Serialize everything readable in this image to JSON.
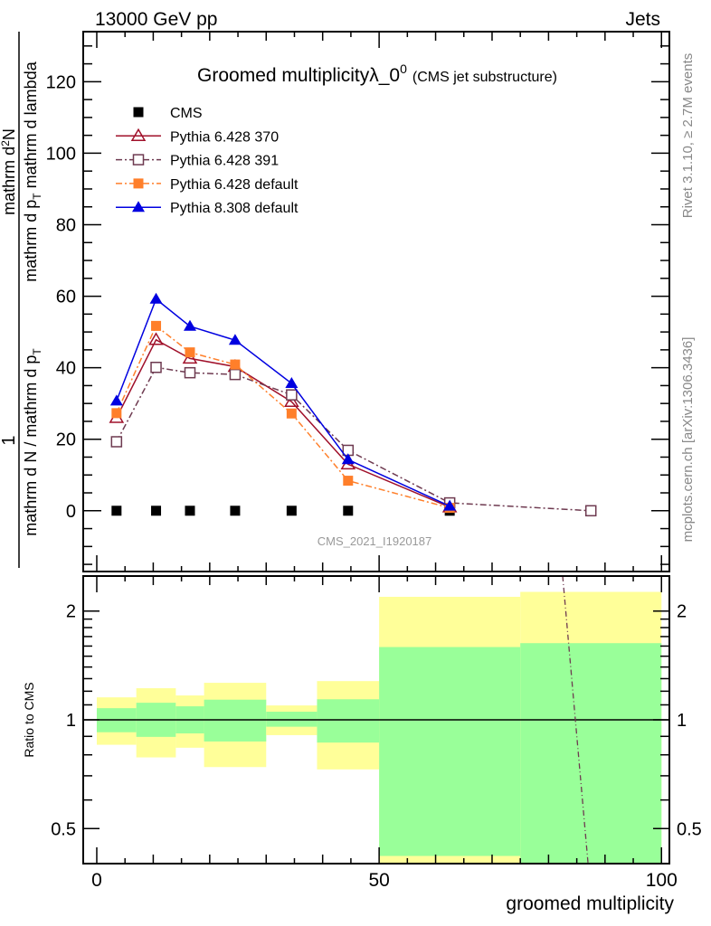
{
  "header": {
    "left": "13000 GeV pp",
    "right": "Jets"
  },
  "side_labels": {
    "rivet": "Rivet 3.1.10, ≥ 2.7M events",
    "mcplots": "mcplots.cern.ch [arXiv:1306.3436]"
  },
  "colors": {
    "cms": "#000000",
    "p370": "#a0102a",
    "p391": "#6e3a50",
    "p6def": "#ff7f2a",
    "p8def": "#0000e0",
    "band_yellow": "#ffff99",
    "band_green": "#99ff99",
    "gray_text": "#888888"
  },
  "chart_data": [
    {
      "type": "line",
      "title": "Groomed multiplicityλ_0",
      "title_sup": "0",
      "subtitle": "(CMS jet substructure)",
      "watermark": "CMS_2021_I1920187",
      "ylabel": {
        "frac1_num": "1",
        "frac1_den": "mathrm d N / mathrm d p",
        "frac1_den_sub": "T",
        "frac2_num": "mathrm d",
        "frac2_num_sup": "2",
        "frac2_num_tail": "N",
        "frac2_den": "mathrm d p",
        "frac2_den_sub": "T",
        "frac2_den_tail": " mathrm d lambda"
      },
      "xlim": [
        -2.4,
        101.4
      ],
      "ylim": [
        -17,
        134
      ],
      "yticks": [
        0,
        20,
        40,
        60,
        80,
        100,
        120
      ],
      "legend_placement": "top-left",
      "x": [
        3.5,
        10.5,
        16.5,
        24.5,
        34.5,
        44.5,
        62.5,
        87.5
      ],
      "series": [
        {
          "name": "CMS",
          "key": "cms",
          "marker": "square-filled",
          "line": "none",
          "values": [
            0,
            0,
            0,
            0,
            0,
            0,
            0,
            0
          ]
        },
        {
          "name": "Pythia 6.428 370",
          "key": "p370",
          "marker": "triangle-open",
          "line": "solid",
          "values": [
            26.0,
            47.8,
            42.6,
            40.3,
            30.5,
            13.0,
            1.0,
            null
          ]
        },
        {
          "name": "Pythia 6.428 391",
          "key": "p391",
          "marker": "square-open",
          "line": "dashdot",
          "values": [
            19.3,
            40.1,
            38.6,
            38.1,
            32.4,
            16.9,
            2.2,
            0.0
          ]
        },
        {
          "name": "Pythia 6.428 default",
          "key": "p6def",
          "marker": "square-filled",
          "line": "dashdot",
          "values": [
            27.3,
            51.7,
            44.3,
            40.9,
            27.2,
            8.4,
            0.8,
            null
          ]
        },
        {
          "name": "Pythia 8.308 default",
          "key": "p8def",
          "marker": "triangle-filled",
          "line": "solid",
          "values": [
            30.7,
            59.2,
            51.6,
            47.7,
            35.6,
            14.3,
            1.3,
            null
          ]
        }
      ]
    },
    {
      "type": "area",
      "ylabel": "Ratio to CMS",
      "xlabel": "groomed multiplicity",
      "yscale": "log",
      "xlim": [
        -2.4,
        101.4
      ],
      "ylim": [
        0.4,
        2.5
      ],
      "xticks": [
        0,
        50,
        100
      ],
      "yticks": [
        0.5,
        1,
        2
      ],
      "bin_edges": [
        0,
        7,
        14,
        19,
        30,
        39,
        50,
        75,
        100
      ],
      "band_yellow": {
        "low": [
          0.853,
          0.787,
          0.837,
          0.74,
          0.907,
          0.729,
          0.3,
          0.3
        ],
        "high": [
          1.154,
          1.223,
          1.168,
          1.266,
          1.096,
          1.28,
          2.19,
          2.26
        ]
      },
      "band_green": {
        "low": [
          0.924,
          0.897,
          0.917,
          0.871,
          0.957,
          0.865,
          0.42,
          0.3
        ],
        "high": [
          1.077,
          1.115,
          1.09,
          1.137,
          1.053,
          1.14,
          1.59,
          1.63
        ]
      },
      "ratio_series": [
        {
          "name": "Pythia 6.428 391",
          "key": "p391",
          "points": [
            [
              82.5,
              2.5
            ],
            [
              87.0,
              0.4
            ]
          ]
        }
      ]
    }
  ]
}
